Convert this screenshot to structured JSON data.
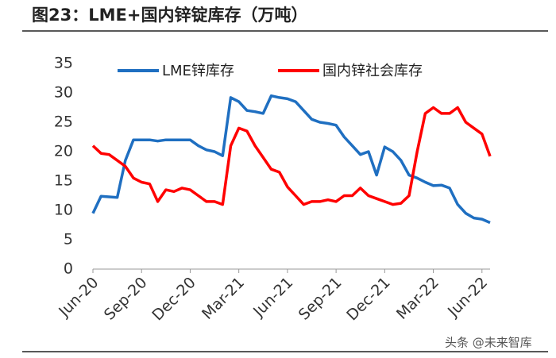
{
  "chart_data": {
    "type": "line",
    "title": "图23：LME+国内锌锭库存（万吨）",
    "watermark": "头条 @未来智库",
    "categories": [
      "Jun-20",
      null,
      null,
      null,
      null,
      null,
      "Sep-20",
      null,
      null,
      null,
      null,
      null,
      "Dec-20",
      null,
      null,
      null,
      null,
      null,
      "Mar-21",
      null,
      null,
      null,
      null,
      null,
      "Jun-21",
      null,
      null,
      null,
      null,
      null,
      "Sep-21",
      null,
      null,
      null,
      null,
      null,
      "Dec-21",
      null,
      null,
      null,
      null,
      null,
      "Mar-22",
      null,
      null,
      null,
      null,
      null,
      "Jun-22",
      null
    ],
    "series": [
      {
        "name": "LME锌库存",
        "color": "#1f6fc1",
        "values": [
          9.5,
          12.4,
          12.3,
          12.2,
          18.5,
          22,
          22,
          22,
          21.8,
          22,
          22,
          22,
          22,
          21,
          20.3,
          20,
          19.3,
          29.2,
          28.5,
          27,
          26.8,
          26.5,
          29.5,
          29.2,
          29,
          28.5,
          27,
          25.5,
          25,
          24.8,
          24.5,
          22.5,
          21,
          19.5,
          20,
          16,
          20.8,
          20,
          18.5,
          16,
          15.5,
          14.8,
          14.2,
          14.3,
          13.8,
          11,
          9.5,
          8.7,
          8.5,
          7.9
        ]
      },
      {
        "name": "国内锌社会库存",
        "color": "#ff0000",
        "values": [
          21,
          19.7,
          19.5,
          18.5,
          17.5,
          15.5,
          14.8,
          14.5,
          11.5,
          13.5,
          13.2,
          13.8,
          13.5,
          12.5,
          11.5,
          11.5,
          11,
          21,
          24,
          23.5,
          21,
          19,
          17,
          16.5,
          14,
          12.5,
          11,
          11.5,
          11.5,
          11.8,
          11.5,
          12.5,
          12.5,
          13.8,
          12.5,
          12,
          11.5,
          11,
          11.2,
          12.5,
          20,
          26.5,
          27.5,
          26.5,
          26.5,
          27.5,
          25,
          24,
          23,
          19.2
        ]
      }
    ],
    "ylim": [
      0,
      35
    ],
    "yticks": [
      0,
      5,
      10,
      15,
      20,
      25,
      30,
      35
    ]
  }
}
